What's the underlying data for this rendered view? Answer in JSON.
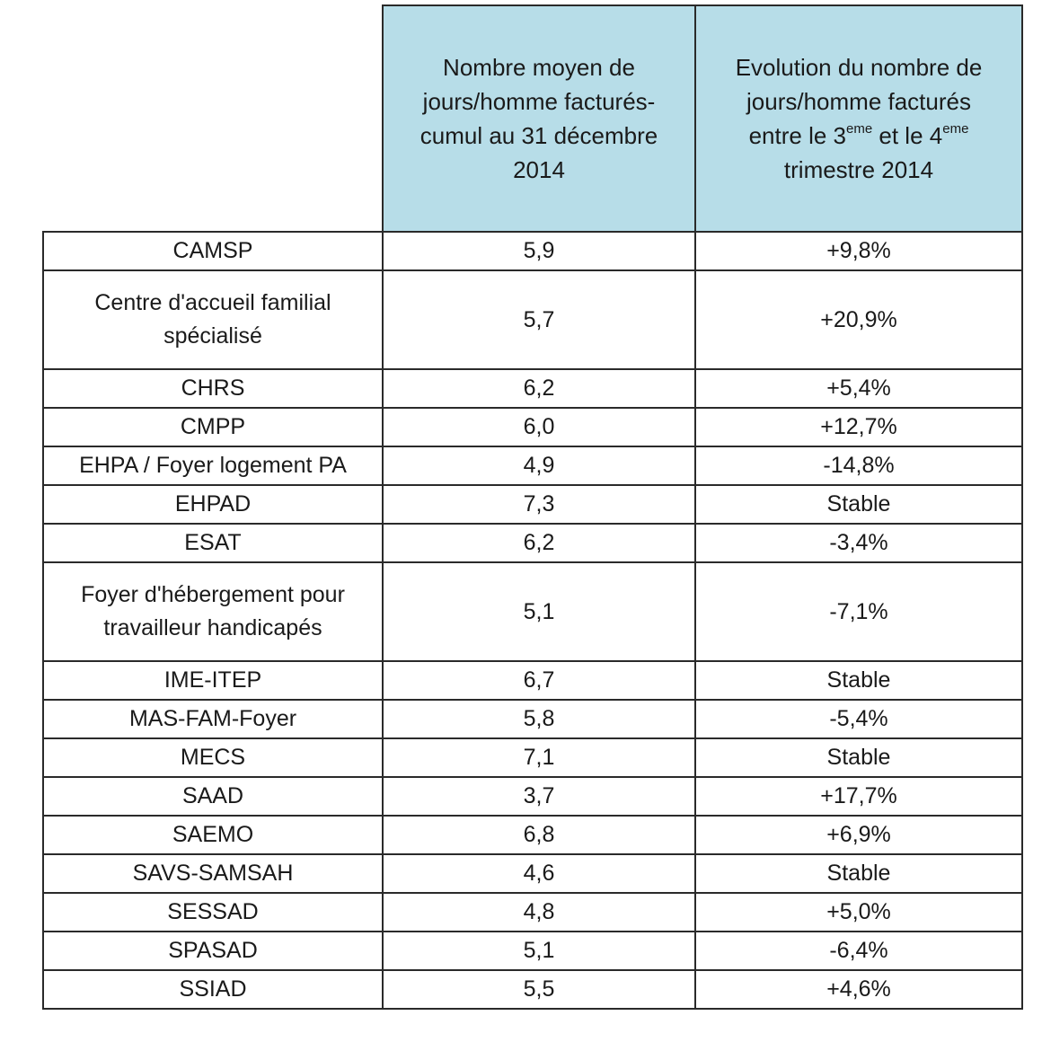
{
  "header": {
    "col2_lines": [
      "Nombre moyen de",
      "jours/homme facturés-",
      "cumul au 31 décembre",
      "2014"
    ],
    "col3_line1": "Evolution du nombre de",
    "col3_line2": "jours/homme facturés",
    "col3_line3_a": "entre le 3",
    "col3_sup_a": "eme",
    "col3_line3_b": " et le 4",
    "col3_sup_b": "eme",
    "col3_line4": "trimestre 2014"
  },
  "rows": [
    {
      "label_lines": [
        "CAMSP"
      ],
      "jours": "5,9",
      "evolution": "+9,8%"
    },
    {
      "label_lines": [
        "Centre d'accueil familial",
        "spécialisé"
      ],
      "jours": "5,7",
      "evolution": "+20,9%"
    },
    {
      "label_lines": [
        "CHRS"
      ],
      "jours": "6,2",
      "evolution": "+5,4%"
    },
    {
      "label_lines": [
        "CMPP"
      ],
      "jours": "6,0",
      "evolution": "+12,7%"
    },
    {
      "label_lines": [
        "EHPA / Foyer logement PA"
      ],
      "jours": "4,9",
      "evolution": "-14,8%"
    },
    {
      "label_lines": [
        "EHPAD"
      ],
      "jours": "7,3",
      "evolution": "Stable"
    },
    {
      "label_lines": [
        "ESAT"
      ],
      "jours": "6,2",
      "evolution": "-3,4%"
    },
    {
      "label_lines": [
        "Foyer d'hébergement pour",
        "travailleur handicapés"
      ],
      "jours": "5,1",
      "evolution": "-7,1%"
    },
    {
      "label_lines": [
        "IME-ITEP"
      ],
      "jours": "6,7",
      "evolution": "Stable"
    },
    {
      "label_lines": [
        "MAS-FAM-Foyer"
      ],
      "jours": "5,8",
      "evolution": "-5,4%"
    },
    {
      "label_lines": [
        "MECS"
      ],
      "jours": "7,1",
      "evolution": "Stable"
    },
    {
      "label_lines": [
        "SAAD"
      ],
      "jours": "3,7",
      "evolution": "+17,7%"
    },
    {
      "label_lines": [
        "SAEMO"
      ],
      "jours": "6,8",
      "evolution": "+6,9%"
    },
    {
      "label_lines": [
        "SAVS-SAMSAH"
      ],
      "jours": "4,6",
      "evolution": "Stable"
    },
    {
      "label_lines": [
        "SESSAD"
      ],
      "jours": "4,8",
      "evolution": "+5,0%"
    },
    {
      "label_lines": [
        "SPASAD"
      ],
      "jours": "5,1",
      "evolution": "-6,4%"
    },
    {
      "label_lines": [
        "SSIAD"
      ],
      "jours": "5,5",
      "evolution": "+4,6%"
    }
  ],
  "colors": {
    "header_bg": "#b7dde8",
    "border": "#2a2a2a"
  }
}
